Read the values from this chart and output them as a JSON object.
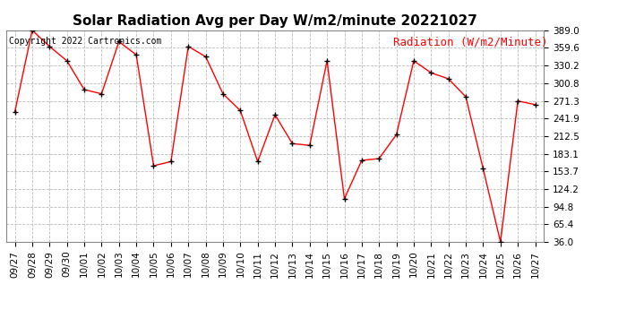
{
  "title": "Solar Radiation Avg per Day W/m2/minute 20221027",
  "copyright_text": "Copyright 2022 Cartronics.com",
  "legend_label": "Radiation (W/m2/Minute)",
  "x_labels": [
    "09/27",
    "09/28",
    "09/29",
    "09/30",
    "10/01",
    "10/02",
    "10/03",
    "10/04",
    "10/05",
    "10/06",
    "10/07",
    "10/08",
    "10/09",
    "10/10",
    "10/11",
    "10/12",
    "10/13",
    "10/14",
    "10/15",
    "10/16",
    "10/17",
    "10/18",
    "10/19",
    "10/20",
    "10/21",
    "10/22",
    "10/23",
    "10/24",
    "10/25",
    "10/26",
    "10/27"
  ],
  "y_values": [
    253.0,
    389.0,
    362.0,
    338.0,
    290.0,
    283.0,
    370.0,
    348.0,
    163.0,
    170.0,
    362.0,
    345.0,
    283.0,
    255.0,
    170.0,
    248.0,
    200.0,
    197.0,
    338.0,
    108.0,
    172.0,
    175.0,
    215.0,
    338.0,
    318.0,
    308.0,
    278.0,
    158.0,
    36.0,
    271.0,
    265.0
  ],
  "y_ticks": [
    36.0,
    65.4,
    94.8,
    124.2,
    153.7,
    183.1,
    212.5,
    241.9,
    271.3,
    300.8,
    330.2,
    359.6,
    389.0
  ],
  "ylim": [
    36.0,
    389.0
  ],
  "line_color": "red",
  "marker_color": "black",
  "grid_color": "#bbbbbb",
  "bg_color": "#ffffff",
  "title_fontsize": 11,
  "copyright_fontsize": 7,
  "legend_fontsize": 9,
  "tick_fontsize": 7.5
}
